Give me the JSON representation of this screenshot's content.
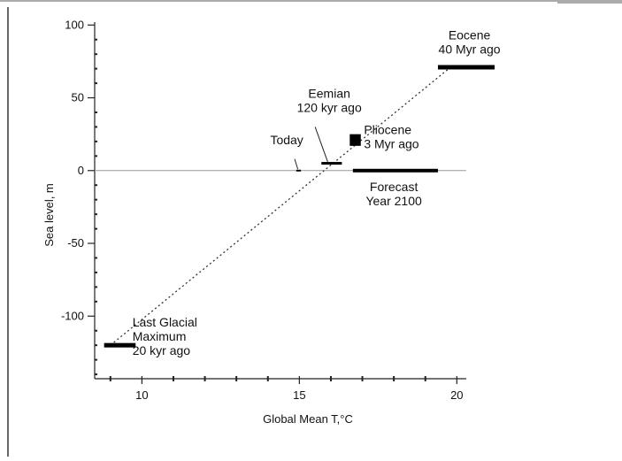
{
  "chart_data": {
    "type": "scatter",
    "title": "",
    "xlabel": "Global Mean T,°C",
    "ylabel": "Sea level, m",
    "xlim": [
      8.5,
      20.3
    ],
    "ylim": [
      -143,
      102
    ],
    "x_ticks": [
      10,
      15,
      20
    ],
    "y_ticks": [
      100,
      50,
      0,
      -50,
      -100
    ],
    "x_minor_step": 1,
    "y_minor_step": 10,
    "grid": false,
    "legend": "none",
    "zero_line": 0,
    "trend_line": {
      "style": "dotted",
      "from": [
        9.0,
        -120
      ],
      "to": [
        19.8,
        71
      ]
    },
    "points": [
      {
        "id": "last-glacial-maximum",
        "shape": "bar",
        "x": [
          8.8,
          9.8
        ],
        "y": -120,
        "thickness": 5,
        "label_lines": [
          "Last Glacial",
          "Maximum",
          "20 kyr ago"
        ],
        "label_at": [
          9.7,
          -107
        ],
        "label_anchor": "start"
      },
      {
        "id": "today",
        "shape": "bar",
        "x": [
          14.9,
          15.05
        ],
        "y": 0,
        "thickness": 2,
        "label_lines": [
          "Today"
        ],
        "label_at": [
          14.6,
          18
        ],
        "label_anchor": "middle",
        "leader": [
          [
            14.85,
            8
          ],
          [
            14.95,
            1
          ]
        ]
      },
      {
        "id": "eemian",
        "shape": "bar",
        "x": [
          15.7,
          16.35
        ],
        "y": 5,
        "thickness": 3,
        "label_lines": [
          "Eemian",
          "120 kyr ago"
        ],
        "label_at": [
          15.95,
          50
        ],
        "label_anchor": "middle",
        "leader": [
          [
            15.5,
            30
          ],
          [
            15.9,
            6
          ]
        ]
      },
      {
        "id": "pliocene",
        "shape": "square",
        "x": [
          16.6,
          16.95
        ],
        "y": [
          17,
          25
        ],
        "label_lines": [
          "Pliocene",
          "3 Myr ago"
        ],
        "label_at": [
          17.05,
          25
        ],
        "label_anchor": "start"
      },
      {
        "id": "forecast-2100",
        "shape": "bar",
        "x": [
          16.7,
          19.4
        ],
        "y": 0,
        "thickness": 4,
        "label_lines": [
          "Forecast",
          "Year 2100"
        ],
        "label_at": [
          18.0,
          -14
        ],
        "label_anchor": "middle"
      },
      {
        "id": "eocene",
        "shape": "bar",
        "x": [
          19.4,
          21.2
        ],
        "y": 71,
        "thickness": 5,
        "label_lines": [
          "Eocene",
          "40 Myr ago"
        ],
        "label_at": [
          20.4,
          90
        ],
        "label_anchor": "middle"
      }
    ]
  }
}
